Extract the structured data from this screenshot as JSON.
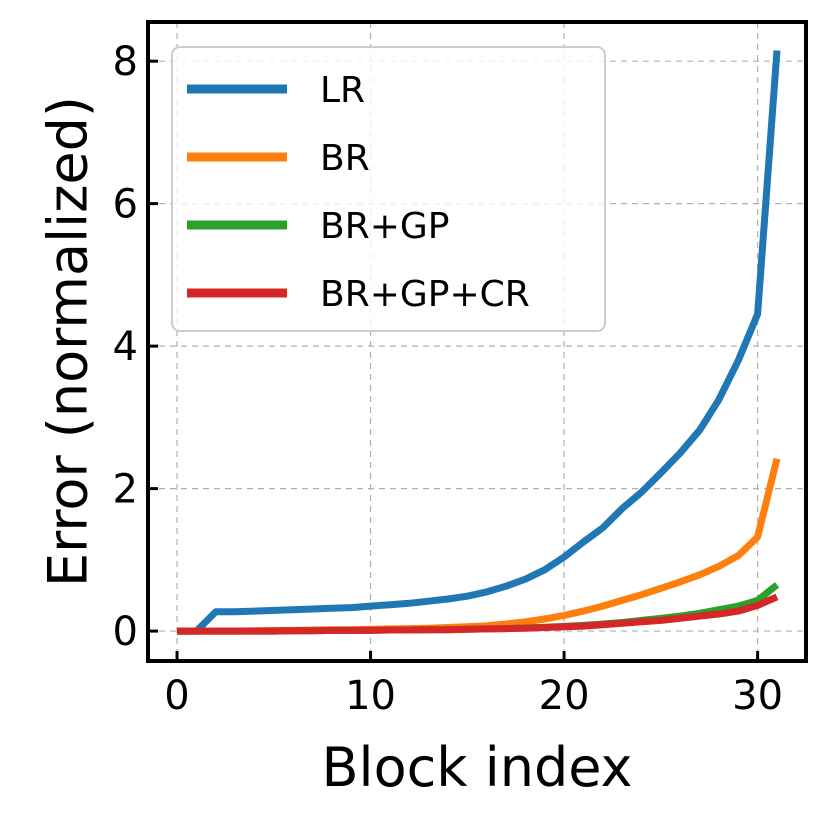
{
  "chart_data": {
    "type": "line",
    "xlabel": "Block index",
    "ylabel": "Error (normalized)",
    "xlim": [
      -1.5,
      32.5
    ],
    "ylim": [
      -0.42,
      8.55
    ],
    "xticks": [
      0,
      10,
      20,
      30
    ],
    "yticks": [
      0,
      2,
      4,
      6,
      8
    ],
    "grid": true,
    "legend_position": "top-left",
    "x": [
      0,
      1,
      2,
      3,
      4,
      5,
      6,
      7,
      8,
      9,
      10,
      11,
      12,
      13,
      14,
      15,
      16,
      17,
      18,
      19,
      20,
      21,
      22,
      23,
      24,
      25,
      26,
      27,
      28,
      29,
      30,
      31
    ],
    "series": [
      {
        "name": "LR",
        "color": "#1f77b4",
        "values": [
          0,
          0,
          0.27,
          0.27,
          0.28,
          0.29,
          0.3,
          0.31,
          0.32,
          0.33,
          0.35,
          0.37,
          0.39,
          0.42,
          0.45,
          0.49,
          0.55,
          0.63,
          0.73,
          0.86,
          1.04,
          1.25,
          1.45,
          1.72,
          1.95,
          2.22,
          2.5,
          2.82,
          3.25,
          3.8,
          4.45,
          8.15
        ]
      },
      {
        "name": "BR",
        "color": "#ff7f0e",
        "values": [
          0,
          0,
          0,
          0,
          0.005,
          0.01,
          0.01,
          0.015,
          0.02,
          0.02,
          0.025,
          0.03,
          0.035,
          0.04,
          0.05,
          0.06,
          0.075,
          0.1,
          0.13,
          0.17,
          0.22,
          0.28,
          0.35,
          0.43,
          0.51,
          0.6,
          0.69,
          0.79,
          0.91,
          1.06,
          1.32,
          2.42
        ]
      },
      {
        "name": "BR+GP",
        "color": "#2ca02c",
        "values": [
          0,
          0,
          0,
          0,
          0,
          0,
          0.005,
          0.005,
          0.01,
          0.01,
          0.01,
          0.015,
          0.015,
          0.02,
          0.02,
          0.025,
          0.03,
          0.035,
          0.045,
          0.055,
          0.065,
          0.08,
          0.1,
          0.12,
          0.15,
          0.18,
          0.21,
          0.25,
          0.3,
          0.35,
          0.43,
          0.65
        ]
      },
      {
        "name": "BR+GP+CR",
        "color": "#d62728",
        "values": [
          0,
          0,
          0,
          0,
          0,
          0,
          0.005,
          0.005,
          0.01,
          0.01,
          0.01,
          0.015,
          0.015,
          0.02,
          0.02,
          0.025,
          0.03,
          0.035,
          0.04,
          0.05,
          0.06,
          0.07,
          0.09,
          0.11,
          0.13,
          0.15,
          0.18,
          0.21,
          0.24,
          0.28,
          0.36,
          0.48
        ]
      }
    ]
  }
}
